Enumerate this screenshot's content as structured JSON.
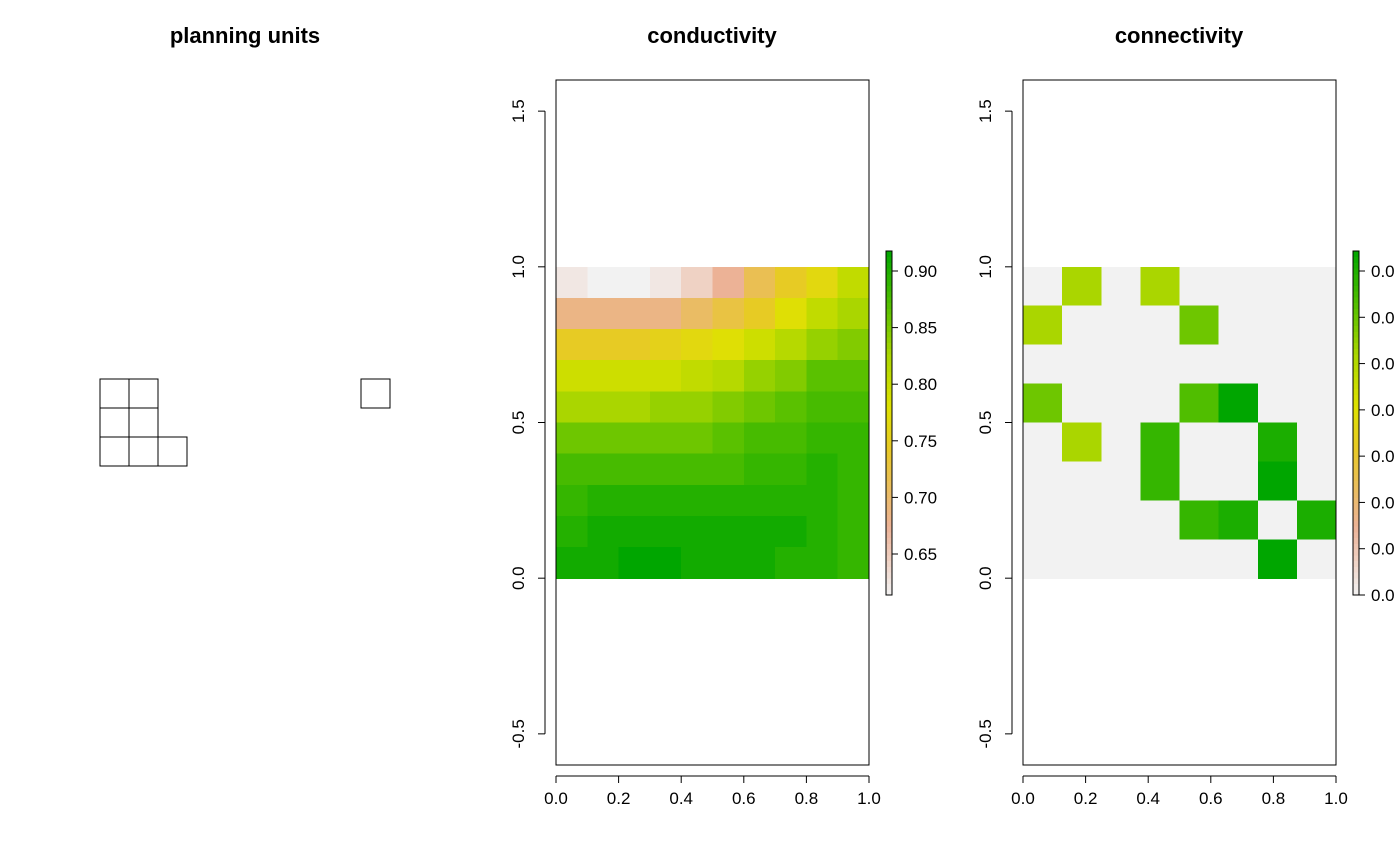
{
  "figure": {
    "panels": [
      {
        "title": "planning units"
      },
      {
        "title": "conductivity"
      },
      {
        "title": "connectivity"
      }
    ]
  },
  "chart_data": [
    {
      "type": "other",
      "title": "planning units",
      "cells": [
        [
          0,
          2
        ],
        [
          1,
          2
        ],
        [
          0,
          1
        ],
        [
          1,
          1
        ],
        [
          0,
          0
        ],
        [
          1,
          0
        ],
        [
          2,
          0
        ],
        [
          9,
          2
        ]
      ],
      "cell_size": 1,
      "grid_on": false
    },
    {
      "type": "heatmap",
      "title": "conductivity",
      "xlim": [
        0,
        1
      ],
      "ylim": [
        -0.6,
        1.6
      ],
      "x_ticks": [
        "0.0",
        "0.2",
        "0.4",
        "0.6",
        "0.8",
        "1.0"
      ],
      "y_ticks": [
        "-0.5",
        "0.0",
        "0.5",
        "1.0",
        "1.5"
      ],
      "raster_extent": {
        "x": [
          0,
          1
        ],
        "y": [
          0,
          1
        ]
      },
      "ncols": 10,
      "nrows": 10,
      "values_top_to_bottom": [
        [
          0.63,
          0.62,
          0.62,
          0.63,
          0.65,
          0.68,
          0.72,
          0.75,
          0.77,
          0.81
        ],
        [
          0.69,
          0.69,
          0.69,
          0.69,
          0.71,
          0.73,
          0.75,
          0.78,
          0.81,
          0.83
        ],
        [
          0.75,
          0.75,
          0.75,
          0.76,
          0.77,
          0.78,
          0.8,
          0.82,
          0.84,
          0.85
        ],
        [
          0.8,
          0.8,
          0.8,
          0.8,
          0.81,
          0.82,
          0.84,
          0.85,
          0.87,
          0.87
        ],
        [
          0.83,
          0.83,
          0.83,
          0.84,
          0.84,
          0.85,
          0.86,
          0.87,
          0.88,
          0.88
        ],
        [
          0.86,
          0.86,
          0.86,
          0.86,
          0.86,
          0.87,
          0.88,
          0.88,
          0.89,
          0.89
        ],
        [
          0.88,
          0.88,
          0.88,
          0.88,
          0.88,
          0.88,
          0.89,
          0.89,
          0.9,
          0.89
        ],
        [
          0.89,
          0.9,
          0.9,
          0.9,
          0.9,
          0.9,
          0.9,
          0.9,
          0.9,
          0.89
        ],
        [
          0.9,
          0.91,
          0.91,
          0.91,
          0.91,
          0.91,
          0.91,
          0.91,
          0.9,
          0.89
        ],
        [
          0.91,
          0.91,
          0.92,
          0.92,
          0.91,
          0.91,
          0.91,
          0.9,
          0.9,
          0.89
        ]
      ],
      "legend": {
        "placement": "right",
        "range": [
          0.62,
          0.92
        ],
        "ticks": [
          "0.65",
          "0.70",
          "0.75",
          "0.80",
          "0.85",
          "0.90"
        ]
      }
    },
    {
      "type": "heatmap",
      "title": "connectivity",
      "xlim": [
        0,
        1
      ],
      "ylim": [
        -0.6,
        1.6
      ],
      "x_ticks": [
        "0.0",
        "0.2",
        "0.4",
        "0.6",
        "0.8",
        "1.0"
      ],
      "y_ticks": [
        "-0.5",
        "0.0",
        "0.5",
        "1.0",
        "1.5"
      ],
      "raster_extent": {
        "x": [
          0,
          1
        ],
        "y": [
          0,
          1
        ]
      },
      "ncols": 8,
      "nrows": 8,
      "values_top_to_bottom": [
        [
          0,
          0.7,
          0,
          0.7,
          0,
          0,
          0,
          0
        ],
        [
          0.7,
          0,
          0,
          0,
          0.8,
          0,
          0,
          0
        ],
        [
          0,
          0,
          0,
          0,
          0,
          0,
          0,
          0
        ],
        [
          0.8,
          0,
          0,
          0,
          0.85,
          1.0,
          0,
          0
        ],
        [
          0,
          0.7,
          0,
          0.9,
          0,
          0,
          0.95,
          0
        ],
        [
          0,
          0,
          0,
          0.9,
          0,
          0,
          1.0,
          0
        ],
        [
          0,
          0,
          0,
          0,
          0.9,
          0.95,
          0,
          0.95
        ],
        [
          0,
          0,
          0,
          0,
          0,
          0,
          1.0,
          0
        ]
      ],
      "legend": {
        "placement": "right",
        "range": [
          0,
          1
        ],
        "ticks": [
          "0.0",
          "0.0",
          "0.0",
          "0.0",
          "0.0",
          "0.0",
          "0.0",
          "0.0"
        ]
      }
    }
  ]
}
